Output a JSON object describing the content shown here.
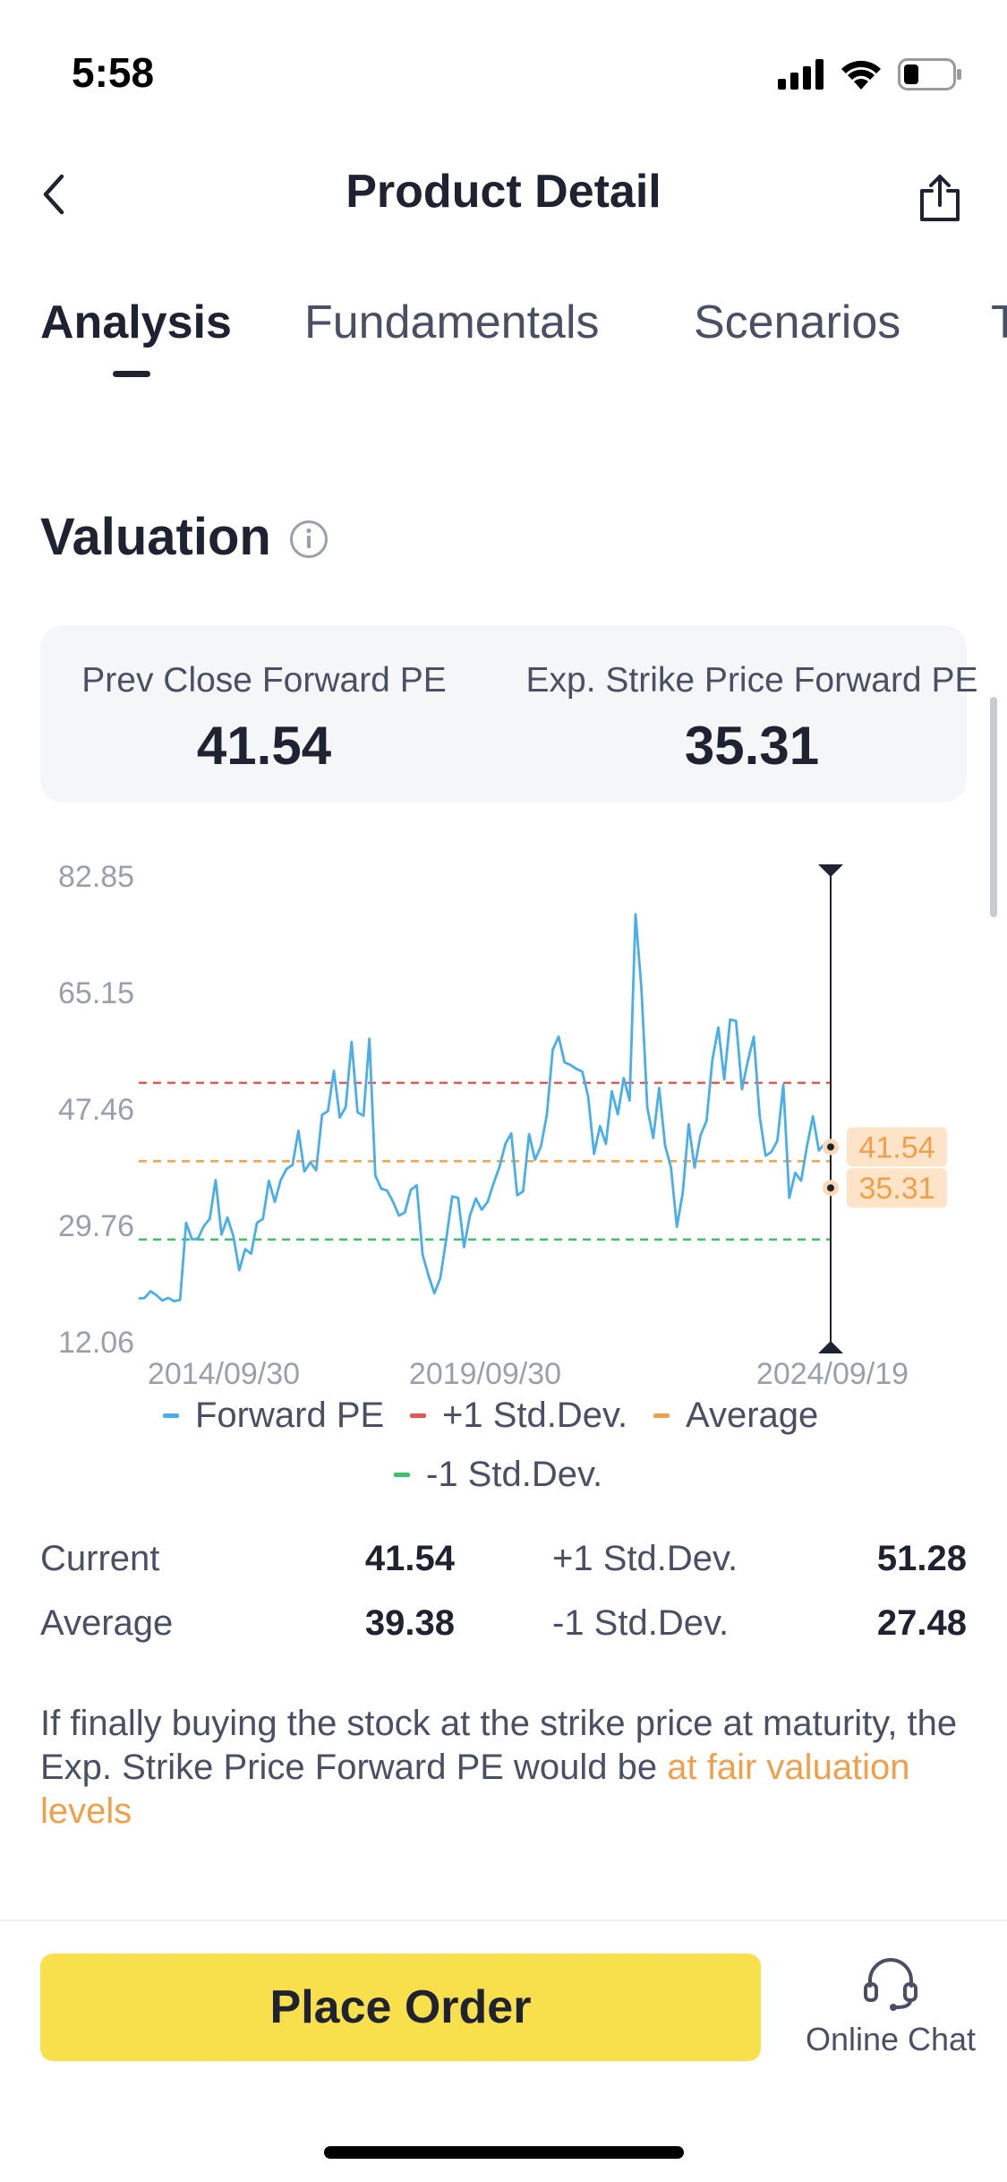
{
  "status_bar": {
    "time": "5:58"
  },
  "header": {
    "title": "Product Detail"
  },
  "tabs": [
    {
      "label": "Analysis",
      "active": true
    },
    {
      "label": "Fundamentals",
      "active": false
    },
    {
      "label": "Scenarios",
      "active": false
    },
    {
      "label": "T",
      "active": false
    }
  ],
  "valuation": {
    "title": "Valuation",
    "prev_close_label": "Prev Close Forward PE",
    "prev_close_value": "41.54",
    "exp_strike_label": "Exp. Strike Price Forward PE",
    "exp_strike_value": "35.31"
  },
  "chart_data": {
    "type": "line",
    "y_ticks": [
      "82.85",
      "65.15",
      "47.46",
      "29.76",
      "12.06"
    ],
    "ylim": [
      12.06,
      82.85
    ],
    "x_ticks": [
      "2014/09/30",
      "2019/09/30",
      "2024/09/19"
    ],
    "series": [
      {
        "name": "Forward PE",
        "color": "#4aaee8",
        "values": [
          18.5,
          18.6,
          19.6,
          19.0,
          18.2,
          18.6,
          18.1,
          18.3,
          30.0,
          27.5,
          27.6,
          29.5,
          30.6,
          36.5,
          28.2,
          30.8,
          28.0,
          22.8,
          26.0,
          25.3,
          30.0,
          30.6,
          36.4,
          33.2,
          36.5,
          38.2,
          38.8,
          44.0,
          37.8,
          39.2,
          38.0,
          46.4,
          47.0,
          53.1,
          46.0,
          47.6,
          57.5,
          46.8,
          46.3,
          58.0,
          37.2,
          35.2,
          34.9,
          33.2,
          31.1,
          31.6,
          35.0,
          35.7,
          25.2,
          22.0,
          19.3,
          21.6,
          27.6,
          34.0,
          33.8,
          26.3,
          31.1,
          33.7,
          32.0,
          33.2,
          36.0,
          38.5,
          42.0,
          43.6,
          34.2,
          34.8,
          43.5,
          39.6,
          41.6,
          46.4,
          56.3,
          58.3,
          54.4,
          54.0,
          53.4,
          53.0,
          49.2,
          40.5,
          44.7,
          42.0,
          50.0,
          46.5,
          52.0,
          48.6,
          76.9,
          65.6,
          47.5,
          42.9,
          50.5,
          41.8,
          38.4,
          29.4,
          34.6,
          45.0,
          38.4,
          43.3,
          45.5,
          54.8,
          59.7,
          51.8,
          60.9,
          60.7,
          50.3,
          54.6,
          58.3,
          46.2,
          40.2,
          40.8,
          42.5,
          51.0,
          33.8,
          37.6,
          36.4,
          41.7,
          46.2,
          41.0,
          42.0,
          41.54
        ]
      },
      {
        "name": "+1 Std.Dev.",
        "color": "#e05a4f",
        "value": 51.28
      },
      {
        "name": "Average",
        "color": "#f0a04b",
        "value": 39.38
      },
      {
        "name": "-1 Std.Dev.",
        "color": "#3fc06b",
        "value": 27.48
      }
    ],
    "markers": [
      {
        "label": "41.54",
        "value": 41.54
      },
      {
        "label": "35.31",
        "value": 35.31
      }
    ],
    "legend_position": "bottom"
  },
  "legend": [
    {
      "label": "Forward PE",
      "color": "#4aaee8"
    },
    {
      "label": "+1 Std.Dev.",
      "color": "#e05a4f"
    },
    {
      "label": "Average",
      "color": "#f0a04b"
    },
    {
      "label": "-1 Std.Dev.",
      "color": "#3fc06b"
    }
  ],
  "stats": {
    "current_label": "Current",
    "current_value": "41.54",
    "plus_std_label": "+1 Std.Dev.",
    "plus_std_value": "51.28",
    "average_label": "Average",
    "average_value": "39.38",
    "minus_std_label": "-1 Std.Dev.",
    "minus_std_value": "27.48"
  },
  "note": {
    "text": "If finally buying the stock at the strike price at maturity, the Exp. Strike Price Forward PE would be ",
    "highlight": "at fair valuation levels"
  },
  "bottom": {
    "order_label": "Place Order",
    "chat_label": "Online Chat"
  }
}
